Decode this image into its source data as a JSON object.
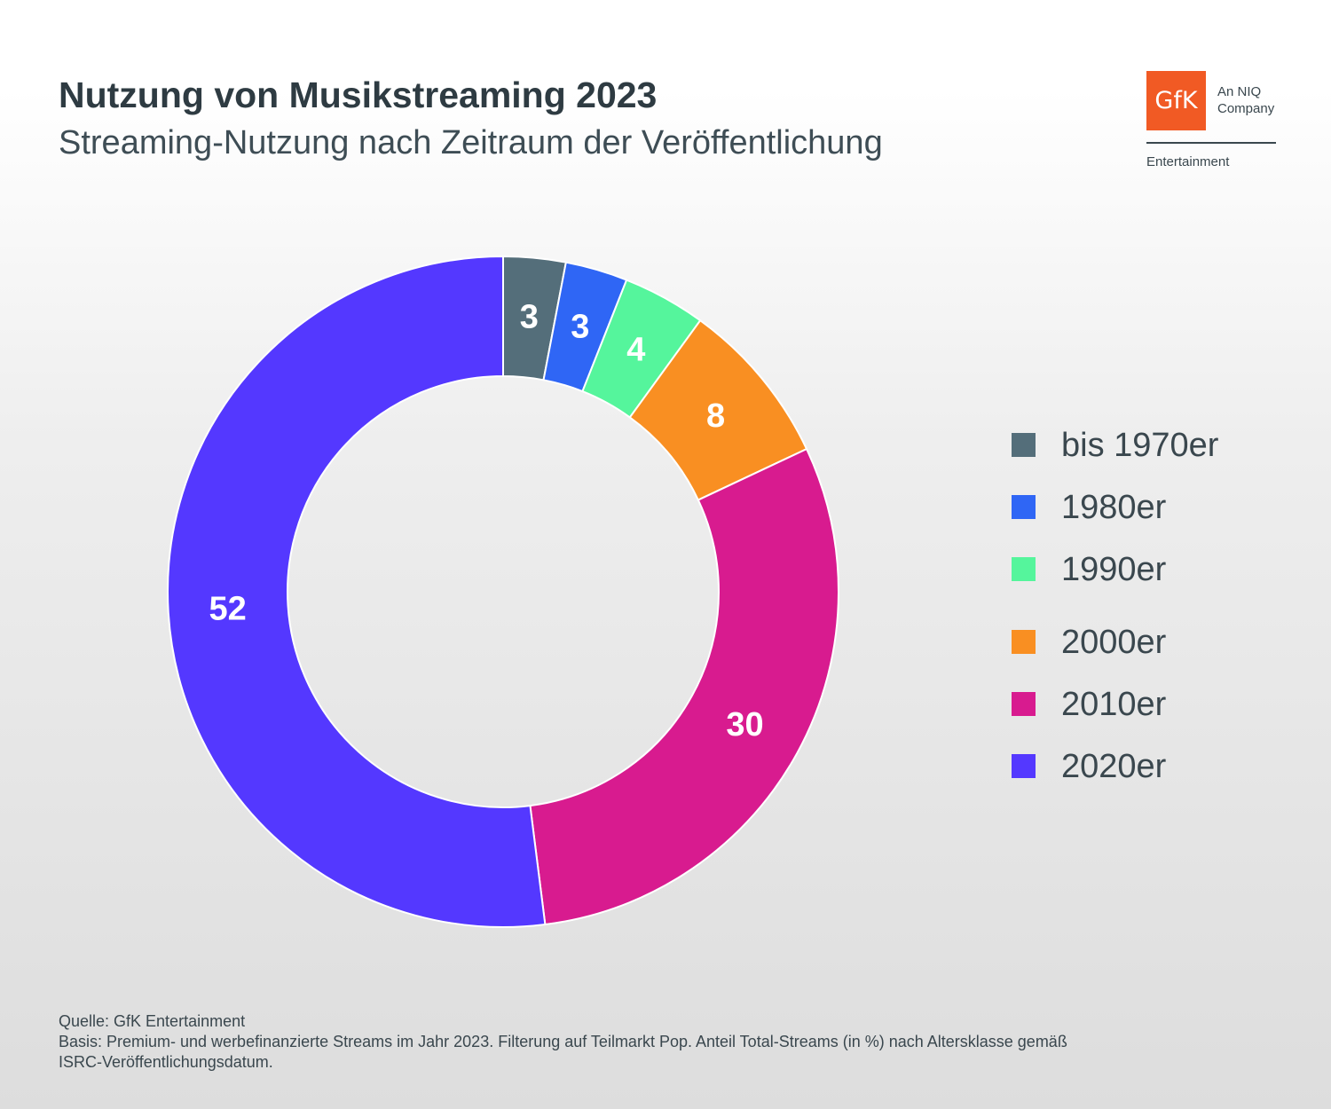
{
  "header": {
    "title": "Nutzung von Musikstreaming 2023",
    "subtitle": "Streaming-Nutzung nach Zeitraum der Veröffentlichung"
  },
  "logo": {
    "mark": "GfK",
    "tagline_line1": "An NIQ",
    "tagline_line2": "Company",
    "sub": "Entertainment",
    "color": "#f15a24"
  },
  "chart_data": {
    "type": "pie",
    "variant": "donut",
    "title": "Nutzung von Musikstreaming 2023",
    "subtitle": "Streaming-Nutzung nach Zeitraum der Veröffentlichung",
    "legend_position": "right",
    "start": "top",
    "direction": "clockwise",
    "unit": "%",
    "categories": [
      "bis 1970er",
      "1980er",
      "1990er",
      "2000er",
      "2010er",
      "2020er"
    ],
    "values": [
      3,
      3,
      4,
      8,
      30,
      52
    ],
    "colors": [
      "#546e7a",
      "#2f66f5",
      "#55f59c",
      "#f98f22",
      "#d81b8f",
      "#5438ff"
    ]
  },
  "footnote": {
    "source": "Quelle: GfK Entertainment",
    "basis_line1": "Basis: Premium- und werbefinanzierte Streams im Jahr 2023. Filterung auf Teilmarkt Pop. Anteil Total-Streams (in %) nach Altersklasse gemäß",
    "basis_line2": "ISRC-Veröffentlichungsdatum."
  }
}
